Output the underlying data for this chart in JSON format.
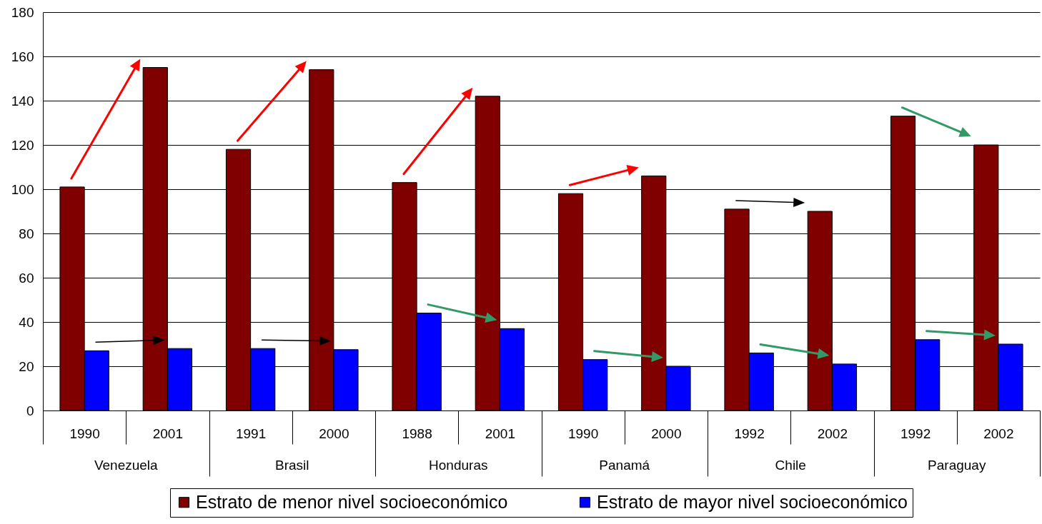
{
  "chart_data": {
    "type": "bar",
    "categories": [
      "1990",
      "2001",
      "1991",
      "2000",
      "1988",
      "2001",
      "1990",
      "2000",
      "1992",
      "2002",
      "1992",
      "2002"
    ],
    "annotations": [
      "Venezuela",
      "Brasil",
      "Honduras",
      "Panamá",
      "Chile",
      "Paraguay"
    ],
    "series": [
      {
        "name": "Estrato de menor nivel socioeconómico",
        "color": "#800000",
        "values": [
          101,
          155,
          118,
          154,
          103,
          142,
          98,
          106,
          91,
          90,
          133,
          120
        ]
      },
      {
        "name": "Estrato de mayor nivel socioeconómico",
        "color": "#0000ff",
        "values": [
          27,
          28,
          28,
          27.5,
          44,
          37,
          23,
          20,
          26,
          21,
          32,
          30
        ]
      }
    ],
    "ylim": [
      0,
      180
    ],
    "yticks": [
      0,
      20,
      40,
      60,
      80,
      100,
      120,
      140,
      160,
      180
    ],
    "grid": "y",
    "legend": "bottom"
  }
}
